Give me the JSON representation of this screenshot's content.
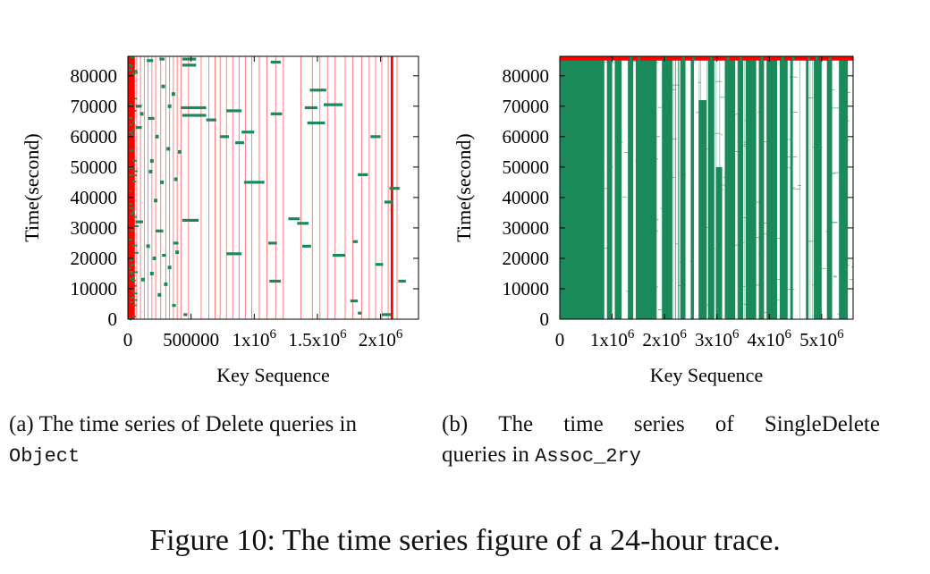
{
  "colors": {
    "lines": "#ff0000",
    "points": "#1a8a5a",
    "axes": "#000000"
  },
  "figure_caption": "Figure 10: The time series figure of a 24-hour trace.",
  "captions": {
    "a": {
      "label": "(a)",
      "text": "The time series of Delete queries in",
      "mono": "Object"
    },
    "b": {
      "label": "(b)",
      "words": [
        "The",
        "time",
        "series",
        "of",
        "SingleDelete"
      ],
      "text2": "queries in",
      "mono": "Assoc_2ry"
    }
  },
  "chart_data": [
    {
      "type": "scatter",
      "title": "",
      "xlabel": "Key Sequence",
      "ylabel": "Time(second)",
      "xlim": [
        0,
        2300000
      ],
      "ylim": [
        0,
        86400
      ],
      "xticks": [
        {
          "value": 0,
          "label": "0"
        },
        {
          "value": 500000,
          "label": "500000"
        },
        {
          "value": 1000000,
          "label": "1x10",
          "exp": "6"
        },
        {
          "value": 1500000,
          "label": "1.5x10",
          "exp": "6"
        },
        {
          "value": 2000000,
          "label": "2x10",
          "exp": "6"
        }
      ],
      "yticks": [
        0,
        10000,
        20000,
        30000,
        40000,
        50000,
        60000,
        70000,
        80000
      ],
      "red_bands": [
        [
          0,
          55000
        ],
        [
          2080000,
          2100000
        ]
      ],
      "red_lines": [
        0,
        40000,
        70000,
        100000,
        130000,
        160000,
        190000,
        220000,
        260000,
        300000,
        330000,
        360000,
        390000,
        420000,
        480000,
        580000,
        640000,
        690000,
        730000,
        780000,
        830000,
        880000,
        930000,
        980000,
        1040000,
        1100000,
        1170000,
        1230000,
        1370000,
        1460000,
        1520000,
        1580000,
        1640000,
        1720000,
        1780000,
        1850000,
        1910000,
        1960000,
        2010000,
        2060000,
        2130000
      ],
      "segments": [
        {
          "x": [
            150000,
            200000
          ],
          "y": 85000
        },
        {
          "x": [
            250000,
            290000
          ],
          "y": 85500
        },
        {
          "x": [
            430000,
            540000
          ],
          "y": 85500
        },
        {
          "x": [
            430000,
            540000
          ],
          "y": 83500
        },
        {
          "x": [
            1130000,
            1210000
          ],
          "y": 84500
        },
        {
          "x": [
            1440000,
            1570000
          ],
          "y": 75300
        },
        {
          "x": [
            1400000,
            1500000
          ],
          "y": 69500
        },
        {
          "x": [
            1550000,
            1700000
          ],
          "y": 70500
        },
        {
          "x": [
            1420000,
            1560000
          ],
          "y": 64500
        },
        {
          "x": [
            420000,
            620000
          ],
          "y": 69500
        },
        {
          "x": [
            430000,
            620000
          ],
          "y": 67000
        },
        {
          "x": [
            780000,
            900000
          ],
          "y": 68500
        },
        {
          "x": [
            1130000,
            1220000
          ],
          "y": 67500
        },
        {
          "x": [
            620000,
            700000
          ],
          "y": 65500
        },
        {
          "x": [
            900000,
            1000000
          ],
          "y": 61500
        },
        {
          "x": [
            730000,
            800000
          ],
          "y": 60000
        },
        {
          "x": [
            850000,
            920000
          ],
          "y": 58000
        },
        {
          "x": [
            920000,
            1080000
          ],
          "y": 45000
        },
        {
          "x": [
            1820000,
            1900000
          ],
          "y": 47500
        },
        {
          "x": [
            1920000,
            2000000
          ],
          "y": 60000
        },
        {
          "x": [
            2030000,
            2100000
          ],
          "y": 38500
        },
        {
          "x": [
            2070000,
            2150000
          ],
          "y": 43000
        },
        {
          "x": [
            430000,
            560000
          ],
          "y": 32500
        },
        {
          "x": [
            1270000,
            1360000
          ],
          "y": 33000
        },
        {
          "x": [
            1340000,
            1430000
          ],
          "y": 31500
        },
        {
          "x": [
            1380000,
            1450000
          ],
          "y": 24000
        },
        {
          "x": [
            1110000,
            1180000
          ],
          "y": 25000
        },
        {
          "x": [
            780000,
            900000
          ],
          "y": 21500
        },
        {
          "x": [
            1620000,
            1720000
          ],
          "y": 21000
        },
        {
          "x": [
            1780000,
            1820000
          ],
          "y": 25500
        },
        {
          "x": [
            1960000,
            2020000
          ],
          "y": 18000
        },
        {
          "x": [
            1120000,
            1210000
          ],
          "y": 12500
        },
        {
          "x": [
            1760000,
            1820000
          ],
          "y": 6000
        },
        {
          "x": [
            1820000,
            1850000
          ],
          "y": 2000
        },
        {
          "x": [
            2010000,
            2080000
          ],
          "y": 1500
        },
        {
          "x": [
            220000,
            280000
          ],
          "y": 29000
        },
        {
          "x": [
            360000,
            400000
          ],
          "y": 25000
        },
        {
          "x": [
            270000,
            300000
          ],
          "y": 21000
        },
        {
          "x": [
            440000,
            470000
          ],
          "y": 1500
        },
        {
          "x": [
            350000,
            380000
          ],
          "y": 4500
        },
        {
          "x": [
            60000,
            110000
          ],
          "y": 70000
        },
        {
          "x": [
            160000,
            210000
          ],
          "y": 66000
        },
        {
          "x": [
            60000,
            120000
          ],
          "y": 32000
        },
        {
          "x": [
            60000,
            110000
          ],
          "y": 63000
        },
        {
          "x": [
            2140000,
            2200000
          ],
          "y": 12500
        }
      ],
      "points": [
        {
          "x": 110000,
          "y": 67500
        },
        {
          "x": 180000,
          "y": 48500
        },
        {
          "x": 190000,
          "y": 52000
        },
        {
          "x": 230000,
          "y": 60000
        },
        {
          "x": 280000,
          "y": 76500
        },
        {
          "x": 330000,
          "y": 70000
        },
        {
          "x": 320000,
          "y": 56000
        },
        {
          "x": 360000,
          "y": 74000
        },
        {
          "x": 380000,
          "y": 46000
        },
        {
          "x": 410000,
          "y": 55000
        },
        {
          "x": 220000,
          "y": 39000
        },
        {
          "x": 190000,
          "y": 15000
        },
        {
          "x": 300000,
          "y": 11500
        },
        {
          "x": 330000,
          "y": 17000
        },
        {
          "x": 390000,
          "y": 22000
        },
        {
          "x": 120000,
          "y": 13000
        },
        {
          "x": 250000,
          "y": 8000
        },
        {
          "x": 160000,
          "y": 24000
        },
        {
          "x": 270000,
          "y": 45000
        },
        {
          "x": 210000,
          "y": 20000
        }
      ]
    },
    {
      "type": "scatter",
      "title": "",
      "xlabel": "Key Sequence",
      "ylabel": "Time(second)",
      "xlim": [
        0,
        5600000
      ],
      "ylim": [
        0,
        86400
      ],
      "xticks": [
        {
          "value": 0,
          "label": "0"
        },
        {
          "value": 1000000,
          "label": "1x10",
          "exp": "6"
        },
        {
          "value": 2000000,
          "label": "2x10",
          "exp": "6"
        },
        {
          "value": 3000000,
          "label": "3x10",
          "exp": "6"
        },
        {
          "value": 4000000,
          "label": "4x10",
          "exp": "6"
        },
        {
          "value": 5000000,
          "label": "5x10",
          "exp": "6"
        }
      ],
      "yticks": [
        0,
        10000,
        20000,
        30000,
        40000,
        50000,
        60000,
        70000,
        80000
      ],
      "dense_blocks": [
        [
          0,
          850000,
          86400
        ],
        [
          900000,
          1000000,
          86400
        ],
        [
          1050000,
          1180000,
          86400
        ],
        [
          1300000,
          1400000,
          86400
        ],
        [
          1450000,
          1850000,
          86400
        ],
        [
          1950000,
          2150000,
          86400
        ],
        [
          2300000,
          2400000,
          86400
        ],
        [
          2500000,
          2560000,
          86400
        ],
        [
          2650000,
          2800000,
          72000
        ],
        [
          2830000,
          2950000,
          86400
        ],
        [
          2980000,
          3100000,
          50000
        ],
        [
          3150000,
          3350000,
          86400
        ],
        [
          3400000,
          3500000,
          86400
        ],
        [
          3550000,
          3750000,
          86400
        ],
        [
          3800000,
          3900000,
          86400
        ],
        [
          3950000,
          4150000,
          86400
        ],
        [
          4200000,
          4350000,
          86400
        ],
        [
          4400000,
          4450000,
          86400
        ],
        [
          4700000,
          4750000,
          86400
        ],
        [
          4850000,
          5000000,
          86400
        ],
        [
          5100000,
          5200000,
          86400
        ],
        [
          5330000,
          5500000,
          86400
        ]
      ],
      "red_top_band": [
        0,
        5600000,
        85000,
        86400
      ]
    }
  ]
}
